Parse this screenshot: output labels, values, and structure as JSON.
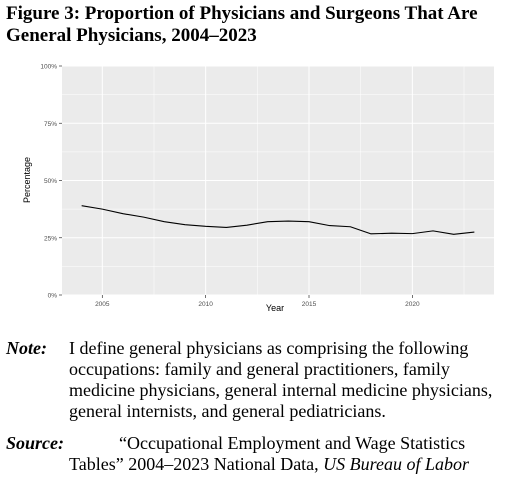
{
  "figure": {
    "title_line1": "Figure 3: Proportion of Physicians and Surgeons That Are",
    "title_line2": "General Physicians, 2004–2023"
  },
  "chart_data": {
    "type": "line",
    "title": "",
    "xlabel": "Year",
    "ylabel": "Percentage",
    "xlim": [
      2003.05,
      2023.95
    ],
    "ylim": [
      0,
      100
    ],
    "x_ticks": [
      2005,
      2010,
      2015,
      2020
    ],
    "x_tick_labels": [
      "2005",
      "2010",
      "2015",
      "2020"
    ],
    "y_ticks": [
      0,
      25,
      50,
      75,
      100
    ],
    "y_tick_labels": [
      "0%",
      "25%",
      "50%",
      "75%",
      "100%"
    ],
    "grid": true,
    "background": "#ebebeb",
    "gridline_color": "#ffffff",
    "line_color": "#000000",
    "series": [
      {
        "x": [
          2004,
          2005,
          2006,
          2007,
          2008,
          2009,
          2010,
          2011,
          2012,
          2013,
          2014,
          2015,
          2016,
          2017,
          2018,
          2019,
          2020,
          2021,
          2022,
          2023
        ],
        "values": [
          39,
          37.5,
          35.5,
          34,
          32,
          30.7,
          30,
          29.5,
          30.5,
          32,
          32.3,
          32,
          30.3,
          29.8,
          26.7,
          27,
          26.8,
          28,
          26.5,
          27.5
        ]
      }
    ]
  },
  "note": {
    "label": "Note:",
    "text": "I define general physicians as comprising the following occupations: family and general practitioners, family medicine physicians, general internal medicine physicians, general internists, and general pediatricians."
  },
  "source": {
    "label": "Source:",
    "line1": "“Occupational Employment and Wage Statistics",
    "line2_plain": "Tables” 2004–2023 National Data, ",
    "line2_italic": "US Bureau of Labor"
  }
}
